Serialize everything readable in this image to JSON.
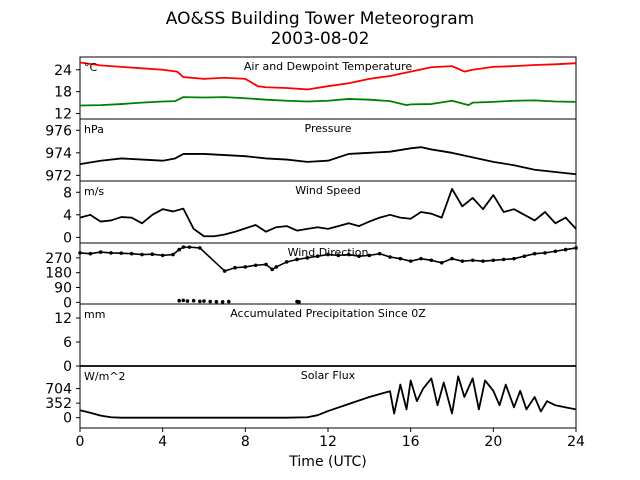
{
  "figure": {
    "title": "AO&SS Building Tower Meteorogram",
    "subtitle": "2003-08-02",
    "xlabel": "Time (UTC)"
  },
  "chart_data": [
    {
      "type": "line",
      "title": "Air and Dewpoint Temperature",
      "unit": "°C",
      "xlim": [
        0,
        24
      ],
      "ylim": [
        10.5,
        27.5
      ],
      "yticks": [
        12,
        18,
        24
      ],
      "series": [
        {
          "color": "#ff0000",
          "x": [
            0,
            1,
            2,
            3,
            4,
            4.7,
            5,
            6,
            7,
            8,
            8.6,
            9,
            10,
            11,
            12,
            13,
            14,
            15,
            16,
            17,
            18,
            18.6,
            19,
            20,
            21,
            22,
            23,
            24
          ],
          "y": [
            26,
            25.2,
            24.8,
            24.4,
            24,
            23.5,
            22,
            21.5,
            21.8,
            21.5,
            19.5,
            19.2,
            19,
            18.6,
            19.5,
            20.3,
            21.5,
            22.3,
            23.5,
            24.7,
            25,
            23.5,
            24,
            24.8,
            25,
            25.3,
            25.5,
            25.8
          ]
        },
        {
          "color": "#008000",
          "x": [
            0,
            1,
            2,
            3,
            4,
            4.6,
            5,
            6,
            7,
            8,
            9,
            10,
            11,
            12,
            13,
            14,
            15,
            15.8,
            16,
            17,
            18,
            18.8,
            19,
            20,
            21,
            22,
            23,
            24
          ],
          "y": [
            14.2,
            14.3,
            14.6,
            15,
            15.3,
            15.4,
            16.5,
            16.4,
            16.5,
            16.2,
            15.8,
            15.5,
            15.3,
            15.5,
            16,
            15.8,
            15.4,
            14.3,
            14.5,
            14.6,
            15.5,
            14.3,
            15,
            15.2,
            15.5,
            15.6,
            15.3,
            15.2
          ]
        }
      ]
    },
    {
      "type": "line",
      "title": "Pressure",
      "unit": "hPa",
      "xlim": [
        0,
        24
      ],
      "ylim": [
        971.5,
        977
      ],
      "yticks": [
        972,
        974,
        976
      ],
      "series": [
        {
          "color": "#000000",
          "x": [
            0,
            1,
            2,
            3,
            4,
            4.6,
            5,
            6,
            7,
            8,
            9,
            10,
            11,
            12,
            13,
            14,
            15,
            16,
            16.5,
            17,
            18,
            19,
            20,
            21,
            22,
            23,
            24
          ],
          "y": [
            973,
            973.3,
            973.5,
            973.4,
            973.3,
            973.5,
            973.9,
            973.9,
            973.8,
            973.7,
            973.5,
            973.4,
            973.2,
            973.3,
            973.9,
            974,
            974.1,
            974.4,
            974.5,
            974.3,
            974,
            973.6,
            973.2,
            972.9,
            972.5,
            972.3,
            972.1
          ]
        }
      ]
    },
    {
      "type": "line",
      "title": "Wind Speed",
      "unit": "m/s",
      "xlim": [
        0,
        24
      ],
      "ylim": [
        -1,
        10
      ],
      "yticks": [
        0,
        4,
        8
      ],
      "series": [
        {
          "color": "#000000",
          "x": [
            0,
            0.5,
            1,
            1.5,
            2,
            2.5,
            3,
            3.5,
            4,
            4.5,
            5,
            5.5,
            6,
            6.5,
            7,
            7.5,
            8,
            8.5,
            9,
            9.5,
            10,
            10.5,
            11,
            11.5,
            12,
            12.5,
            13,
            13.5,
            14,
            14.5,
            15,
            15.5,
            16,
            16.5,
            17,
            17.5,
            18,
            18.5,
            19,
            19.5,
            20,
            20.5,
            21,
            21.5,
            22,
            22.5,
            23,
            23.5,
            24
          ],
          "y": [
            3.5,
            4,
            2.8,
            3,
            3.6,
            3.5,
            2.5,
            4,
            5,
            4.6,
            5.1,
            1.5,
            0.2,
            0.2,
            0.5,
            1,
            1.6,
            2.2,
            1,
            1.8,
            2,
            1.2,
            1.5,
            1.8,
            1.5,
            2,
            2.5,
            2,
            2.8,
            3.5,
            4,
            3.5,
            3.3,
            4.5,
            4.2,
            3.5,
            8.6,
            5.5,
            7,
            5,
            7.5,
            4.5,
            5,
            4,
            3,
            4.5,
            2.5,
            3.5,
            1.5
          ]
        }
      ]
    },
    {
      "type": "scatter",
      "title": "Wind Direction",
      "unit": "",
      "xlim": [
        0,
        24
      ],
      "ylim": [
        -10,
        360
      ],
      "yticks": [
        0,
        90,
        180,
        270
      ],
      "series": [
        {
          "color": "#000000",
          "x": [
            0,
            0.5,
            1,
            1.5,
            2,
            2.5,
            3,
            3.5,
            4,
            4.5,
            4.8,
            5,
            5.3,
            5.8,
            7,
            7.5,
            8,
            8.5,
            9,
            9.3,
            9.5,
            10,
            10.5,
            11,
            11.5,
            12,
            12.5,
            13,
            13.5,
            14,
            14.5,
            15,
            15.5,
            16,
            16.5,
            17,
            17.5,
            18,
            18.5,
            19,
            19.5,
            20,
            20.5,
            21,
            21.5,
            22,
            22.5,
            23,
            23.5,
            24
          ],
          "y": [
            300,
            295,
            305,
            300,
            298,
            295,
            290,
            292,
            285,
            290,
            320,
            335,
            335,
            330,
            190,
            210,
            215,
            225,
            230,
            200,
            215,
            245,
            260,
            270,
            280,
            290,
            285,
            290,
            280,
            285,
            295,
            275,
            265,
            250,
            265,
            255,
            240,
            265,
            250,
            255,
            250,
            255,
            260,
            265,
            280,
            295,
            300,
            310,
            320,
            330
          ]
        },
        {
          "color": "#000000",
          "x": [
            4.8,
            5,
            5.2,
            5.5,
            5.8,
            6,
            6.3,
            6.6,
            6.9,
            7.2,
            10.5,
            10.6
          ],
          "y": [
            10,
            12,
            8,
            10,
            6,
            8,
            5,
            4,
            3,
            5,
            5,
            3
          ]
        }
      ]
    },
    {
      "type": "line",
      "title": "Accumulated Precipitation Since 0Z",
      "unit": "mm",
      "xlim": [
        0,
        24
      ],
      "ylim": [
        0,
        15.5
      ],
      "yticks": [
        0,
        6,
        12
      ],
      "series": [
        {
          "color": "#000000",
          "x": [
            0,
            24
          ],
          "y": [
            0,
            0
          ]
        }
      ]
    },
    {
      "type": "line",
      "title": "Solar Flux",
      "unit": "W/m^2",
      "xlim": [
        0,
        24
      ],
      "ylim": [
        -250,
        1250
      ],
      "yticks": [
        0,
        352,
        704
      ],
      "series": [
        {
          "color": "#000000",
          "x": [
            0,
            0.5,
            1,
            1.5,
            2,
            4,
            6,
            8,
            10,
            11,
            11.5,
            12,
            13,
            14,
            15,
            15.2,
            15.5,
            15.8,
            16,
            16.3,
            16.6,
            17,
            17.3,
            17.6,
            18,
            18.3,
            18.6,
            19,
            19.3,
            19.6,
            20,
            20.3,
            20.6,
            21,
            21.3,
            21.6,
            22,
            22.3,
            22.6,
            23,
            23.5,
            24
          ],
          "y": [
            180,
            120,
            50,
            10,
            0,
            0,
            0,
            0,
            0,
            10,
            60,
            160,
            330,
            500,
            640,
            100,
            800,
            200,
            900,
            400,
            700,
            950,
            300,
            850,
            100,
            1000,
            500,
            950,
            200,
            900,
            650,
            300,
            800,
            250,
            650,
            200,
            500,
            150,
            400,
            300,
            250,
            200
          ]
        }
      ]
    }
  ]
}
